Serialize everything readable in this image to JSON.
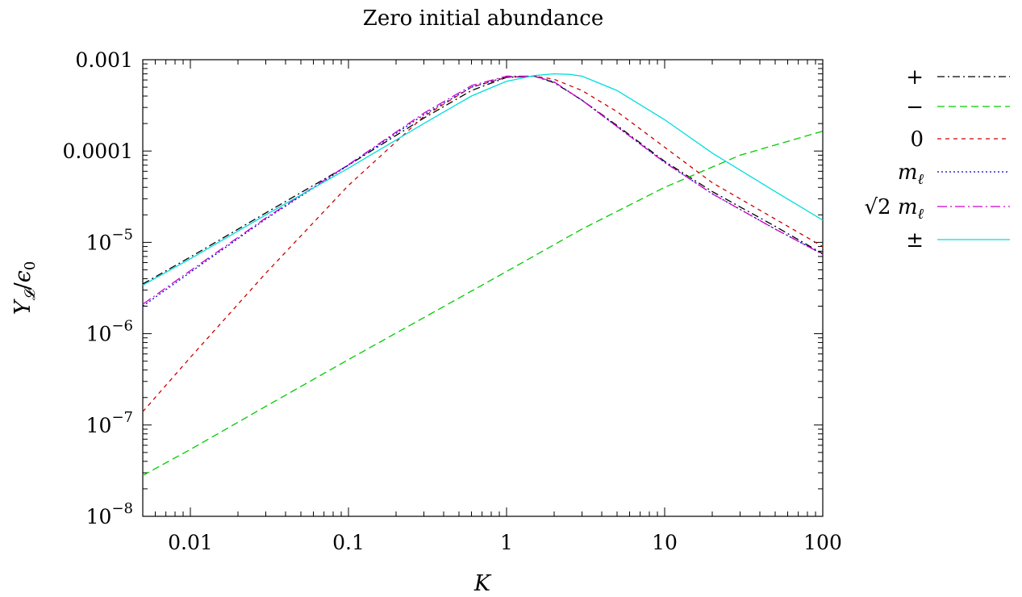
{
  "chart_data": {
    "type": "line",
    "title": "Zero initial abundance",
    "xlabel": "K",
    "ylabel": "Y_L/ε_0",
    "x_scale": "log",
    "y_scale": "log",
    "xlim": [
      0.005,
      100
    ],
    "ylim": [
      1e-08,
      0.001
    ],
    "x_ticks": [
      0.01,
      0.1,
      1,
      10,
      100
    ],
    "x_tick_labels": [
      "0.01",
      "0.1",
      "1",
      "10",
      "100"
    ],
    "y_ticks": [
      1e-08,
      1e-07,
      1e-06,
      1e-05,
      0.0001,
      0.001
    ],
    "y_tick_labels": [
      {
        "base": "10",
        "exp": "−8"
      },
      {
        "base": "10",
        "exp": "−7"
      },
      {
        "base": "10",
        "exp": "−6"
      },
      {
        "base": "10",
        "exp": "−5"
      },
      {
        "base": "0.0001",
        "exp": ""
      },
      {
        "base": "0.001",
        "exp": ""
      }
    ],
    "grid": false,
    "legend_position": "right",
    "series": [
      {
        "name": "+",
        "color": "#000000",
        "dash": "dashdot",
        "x": [
          0.005,
          0.01,
          0.03,
          0.1,
          0.3,
          0.6,
          1,
          1.5,
          2,
          3,
          5,
          10,
          20,
          50,
          100
        ],
        "y": [
          3.5e-06,
          6.9e-06,
          2.1e-05,
          7e-05,
          0.00023,
          0.00046,
          0.00064,
          0.00066,
          0.00056,
          0.00036,
          0.00019,
          7.7e-05,
          3.6e-05,
          1.5e-05,
          7.5e-06
        ]
      },
      {
        "name": "−",
        "color": "#00cc00",
        "dash": "dashed",
        "x": [
          0.005,
          0.01,
          0.03,
          0.1,
          0.3,
          1,
          3,
          10,
          30,
          100
        ],
        "y": [
          2.8e-08,
          5.4e-08,
          1.6e-07,
          5.2e-07,
          1.5e-06,
          4.8e-06,
          1.4e-05,
          4e-05,
          9e-05,
          0.000165
        ]
      },
      {
        "name": "0",
        "color": "#cc0000",
        "dash": "short-dashed",
        "x": [
          0.005,
          0.01,
          0.03,
          0.1,
          0.3,
          0.6,
          1,
          1.5,
          2,
          3,
          5,
          10,
          20,
          50,
          100
        ],
        "y": [
          1.4e-07,
          5.5e-07,
          4.6e-06,
          4.2e-05,
          0.00024,
          0.0005,
          0.00064,
          0.00066,
          0.00061,
          0.00046,
          0.00027,
          0.00011,
          4.5e-05,
          1.8e-05,
          9e-06
        ]
      },
      {
        "name": "m_ℓ",
        "color": "#0000cc",
        "dash": "dotted",
        "x": [
          0.005,
          0.01,
          0.03,
          0.1,
          0.3,
          0.6,
          1,
          1.5,
          2,
          3,
          5,
          10,
          20,
          50,
          100
        ],
        "y": [
          2e-06,
          4.7e-06,
          1.8e-05,
          7e-05,
          0.00025,
          0.0005,
          0.00065,
          0.00066,
          0.00057,
          0.00036,
          0.000185,
          7.5e-05,
          3.4e-05,
          1.4e-05,
          7.4e-06
        ]
      },
      {
        "name": "√2 m_ℓ",
        "color": "#cc00cc",
        "dash": "dashdot-long",
        "x": [
          0.005,
          0.01,
          0.03,
          0.1,
          0.3,
          0.6,
          1,
          1.5,
          2,
          3,
          5,
          10,
          20,
          50,
          100
        ],
        "y": [
          2.1e-06,
          4.9e-06,
          1.85e-05,
          7.1e-05,
          0.00026,
          0.00052,
          0.00066,
          0.00066,
          0.00057,
          0.00036,
          0.000185,
          7.5e-05,
          3.4e-05,
          1.4e-05,
          7.4e-06
        ]
      },
      {
        "name": "±",
        "color": "#00dddd",
        "dash": "solid",
        "x": [
          0.005,
          0.01,
          0.03,
          0.1,
          0.3,
          0.6,
          1,
          1.5,
          2,
          2.5,
          3,
          5,
          10,
          20,
          50,
          100
        ],
        "y": [
          3.4e-06,
          6.6e-06,
          2e-05,
          6.5e-05,
          0.0002,
          0.0004,
          0.00058,
          0.00067,
          0.0007,
          0.00069,
          0.00066,
          0.00046,
          0.00022,
          9.5e-05,
          3.6e-05,
          1.75e-05
        ]
      }
    ]
  }
}
